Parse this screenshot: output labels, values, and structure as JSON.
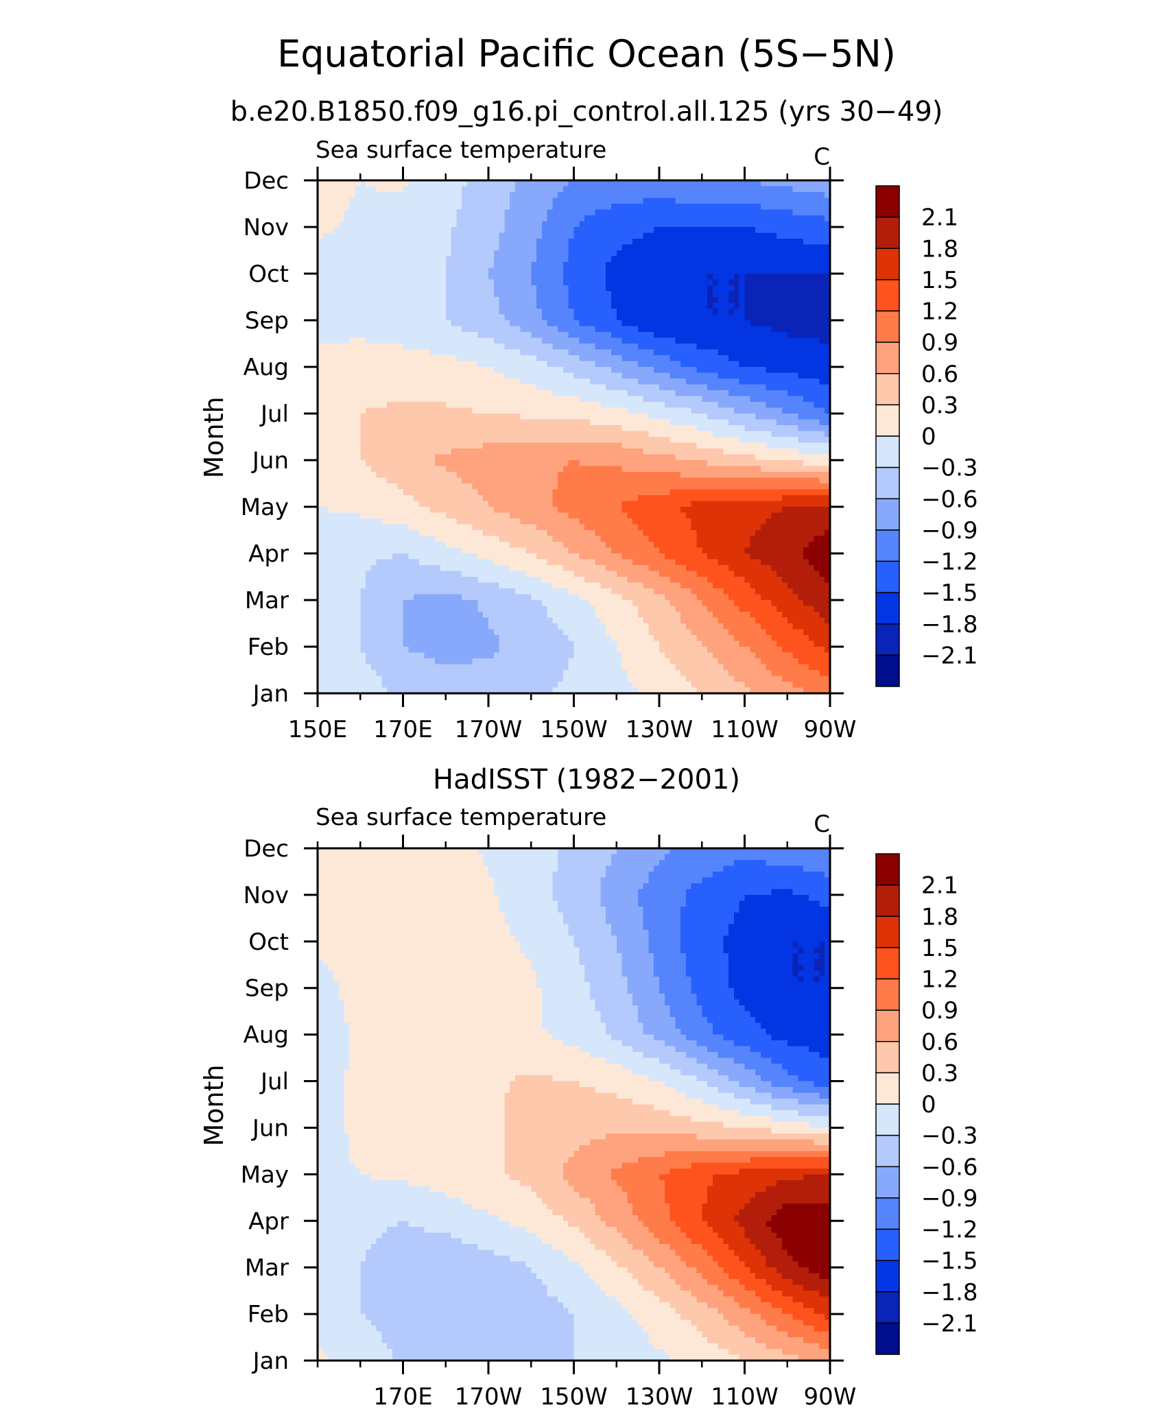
{
  "title": "Equatorial Pacific Ocean (5S−5N)",
  "subtitle": "b.e20.B1850.f09_g16.pi_control.all.125 (yrs 30−49)",
  "colorbar": {
    "labels": [
      "2.1",
      "1.8",
      "1.5",
      "1.2",
      "0.9",
      "0.6",
      "0.3",
      "0",
      "−0.3",
      "−0.6",
      "−0.9",
      "−1.2",
      "−1.5",
      "−1.8",
      "−2.1"
    ],
    "colors": [
      "#8b0000",
      "#b31e0a",
      "#dd3306",
      "#ff531e",
      "#ff7c4a",
      "#fea37d",
      "#fec8ad",
      "#fde8d7",
      "#d6e7fc",
      "#b4cafc",
      "#88a9fb",
      "#5584fd",
      "#2860fd",
      "#0335e3",
      "#0a24b8",
      "#000d8c"
    ]
  },
  "chart_data": [
    {
      "type": "heatmap",
      "panel_title": "",
      "left_label": "Sea surface temperature",
      "right_label": "C",
      "ylabel": "Month",
      "y_tick_labels": [
        "Jan",
        "Feb",
        "Mar",
        "Apr",
        "May",
        "Jun",
        "Jul",
        "Aug",
        "Sep",
        "Oct",
        "Nov",
        "Dec"
      ],
      "x_tick_labels": [
        "150E",
        "170E",
        "170W",
        "150W",
        "130W",
        "110W",
        "90W"
      ],
      "x_tick_lon": [
        150,
        170,
        190,
        210,
        230,
        250,
        270
      ],
      "xlim": [
        150,
        270
      ],
      "ylim": [
        1,
        12
      ],
      "x_grid_lon": [
        150,
        160,
        170,
        180,
        190,
        200,
        210,
        220,
        230,
        240,
        250,
        260,
        270
      ],
      "levels": [
        -2.1,
        -1.8,
        -1.5,
        -1.2,
        -0.9,
        -0.6,
        -0.3,
        0,
        0.3,
        0.6,
        0.9,
        1.2,
        1.5,
        1.8,
        2.1
      ],
      "values": [
        [
          -0.05,
          -0.15,
          -0.35,
          -0.45,
          -0.45,
          -0.35,
          -0.25,
          -0.1,
          0.1,
          0.3,
          0.55,
          0.8,
          1.0
        ],
        [
          -0.1,
          -0.3,
          -0.6,
          -0.7,
          -0.65,
          -0.5,
          -0.3,
          0.0,
          0.3,
          0.6,
          0.9,
          1.25,
          1.6
        ],
        [
          -0.1,
          -0.3,
          -0.6,
          -0.7,
          -0.55,
          -0.35,
          -0.1,
          0.2,
          0.5,
          0.9,
          1.3,
          1.7,
          2.0
        ],
        [
          -0.2,
          -0.25,
          -0.3,
          -0.1,
          0.1,
          0.3,
          0.6,
          0.9,
          1.2,
          1.5,
          1.8,
          2.0,
          2.3
        ],
        [
          0.0,
          0.05,
          0.2,
          0.4,
          0.6,
          0.8,
          1.0,
          1.2,
          1.4,
          1.6,
          1.7,
          1.8,
          1.9
        ],
        [
          0.1,
          0.3,
          0.5,
          0.65,
          0.75,
          0.85,
          0.9,
          0.85,
          0.7,
          0.55,
          0.4,
          0.25,
          0.1
        ],
        [
          0.1,
          0.3,
          0.35,
          0.35,
          0.3,
          0.25,
          0.2,
          0.1,
          -0.1,
          -0.3,
          -0.6,
          -0.9,
          -1.2
        ],
        [
          0.1,
          0.2,
          0.15,
          0.1,
          0.0,
          -0.15,
          -0.4,
          -0.7,
          -1.0,
          -1.3,
          -1.5,
          -1.6,
          -1.7
        ],
        [
          -0.1,
          -0.15,
          -0.2,
          -0.3,
          -0.5,
          -0.8,
          -1.2,
          -1.5,
          -1.8,
          -1.8,
          -1.8,
          -1.9,
          -1.9
        ],
        [
          -0.15,
          -0.2,
          -0.2,
          -0.3,
          -0.6,
          -0.9,
          -1.3,
          -1.6,
          -1.7,
          -1.8,
          -1.8,
          -1.8,
          -1.8
        ],
        [
          0.05,
          -0.05,
          -0.15,
          -0.25,
          -0.5,
          -0.8,
          -1.2,
          -1.4,
          -1.5,
          -1.5,
          -1.5,
          -1.4,
          -1.3
        ],
        [
          0.1,
          0.0,
          0.05,
          -0.2,
          -0.4,
          -0.7,
          -0.9,
          -1.0,
          -1.0,
          -0.9,
          -0.9,
          -0.8,
          -0.7
        ]
      ]
    },
    {
      "type": "heatmap",
      "panel_title": "HadISST (1982−2001)",
      "left_label": "Sea surface temperature",
      "right_label": "C",
      "ylabel": "Month",
      "y_tick_labels": [
        "Jan",
        "Feb",
        "Mar",
        "Apr",
        "May",
        "Jun",
        "Jul",
        "Aug",
        "Sep",
        "Oct",
        "Nov",
        "Dec"
      ],
      "x_tick_labels": [
        "170E",
        "170W",
        "150W",
        "130W",
        "110W",
        "90W"
      ],
      "x_tick_lon": [
        170,
        190,
        210,
        230,
        250,
        270
      ],
      "xlim": [
        150,
        270
      ],
      "ylim": [
        1,
        12
      ],
      "x_grid_lon": [
        150,
        160,
        170,
        180,
        190,
        200,
        210,
        220,
        230,
        240,
        250,
        260,
        270
      ],
      "levels": [
        -2.1,
        -1.8,
        -1.5,
        -1.2,
        -0.9,
        -0.6,
        -0.3,
        0,
        0.3,
        0.6,
        0.9,
        1.2,
        1.5,
        1.8,
        2.1
      ],
      "values": [
        [
          0.05,
          -0.1,
          -0.35,
          -0.45,
          -0.45,
          -0.4,
          -0.3,
          -0.2,
          -0.05,
          0.1,
          0.3,
          0.5,
          0.7
        ],
        [
          -0.1,
          -0.3,
          -0.45,
          -0.55,
          -0.55,
          -0.45,
          -0.3,
          -0.1,
          0.15,
          0.45,
          0.8,
          1.2,
          1.6
        ],
        [
          -0.05,
          -0.3,
          -0.5,
          -0.55,
          -0.45,
          -0.3,
          -0.05,
          0.25,
          0.6,
          1.0,
          1.5,
          2.0,
          2.3
        ],
        [
          -0.05,
          -0.2,
          -0.3,
          -0.2,
          -0.05,
          0.1,
          0.35,
          0.7,
          1.1,
          1.5,
          1.9,
          2.3,
          2.3
        ],
        [
          -0.05,
          0.0,
          0.05,
          0.15,
          0.25,
          0.4,
          0.7,
          0.95,
          1.2,
          1.45,
          1.6,
          1.75,
          1.8
        ],
        [
          -0.1,
          0.05,
          0.15,
          0.2,
          0.25,
          0.4,
          0.5,
          0.55,
          0.5,
          0.4,
          0.3,
          0.15,
          0.0
        ],
        [
          -0.1,
          0.05,
          0.15,
          0.15,
          0.25,
          0.35,
          0.3,
          0.2,
          0.0,
          -0.3,
          -0.7,
          -1.1,
          -1.4
        ],
        [
          -0.15,
          0.05,
          0.15,
          0.15,
          0.15,
          0.05,
          -0.1,
          -0.35,
          -0.7,
          -1.1,
          -1.4,
          -1.6,
          -1.65
        ],
        [
          -0.1,
          0.1,
          0.2,
          0.3,
          0.2,
          0.05,
          -0.2,
          -0.5,
          -0.9,
          -1.3,
          -1.6,
          -1.8,
          -1.8
        ],
        [
          0.05,
          0.1,
          0.15,
          0.15,
          0.1,
          -0.05,
          -0.3,
          -0.6,
          -1.0,
          -1.4,
          -1.6,
          -1.8,
          -1.8
        ],
        [
          0.1,
          0.15,
          0.15,
          0.15,
          0.05,
          -0.2,
          -0.4,
          -0.75,
          -1.05,
          -1.3,
          -1.5,
          -1.55,
          -1.4
        ],
        [
          0.1,
          0.15,
          0.15,
          0.15,
          -0.05,
          -0.2,
          -0.35,
          -0.6,
          -0.85,
          -1.0,
          -1.1,
          -1.0,
          -0.9
        ]
      ]
    }
  ]
}
